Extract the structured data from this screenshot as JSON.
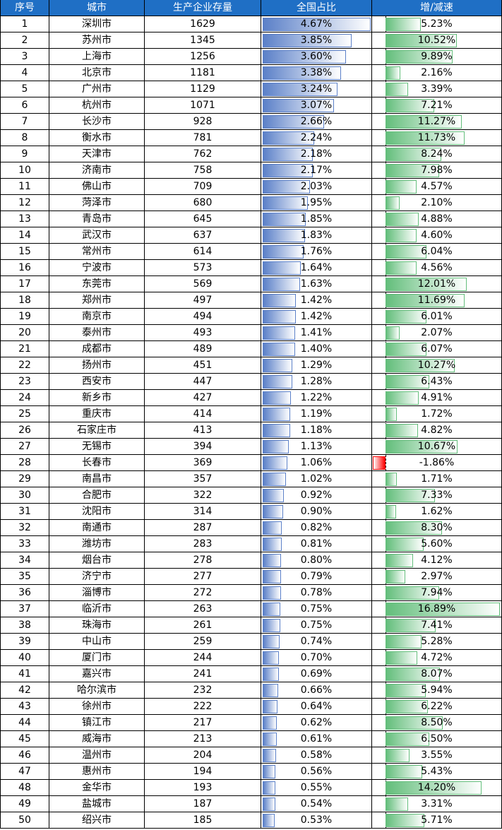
{
  "table": {
    "columns": [
      "序号",
      "城市",
      "生产企业存量",
      "全国占比",
      "增/减速"
    ],
    "rows": [
      [
        1,
        "深圳市",
        1629,
        4.67,
        "4.67%",
        5.23,
        "5.23%"
      ],
      [
        2,
        "苏州市",
        1345,
        3.85,
        "3.85%",
        10.52,
        "10.52%"
      ],
      [
        3,
        "上海市",
        1256,
        3.6,
        "3.60%",
        9.89,
        "9.89%"
      ],
      [
        4,
        "北京市",
        1181,
        3.38,
        "3.38%",
        2.16,
        "2.16%"
      ],
      [
        5,
        "广州市",
        1129,
        3.24,
        "3.24%",
        3.39,
        "3.39%"
      ],
      [
        6,
        "杭州市",
        1071,
        3.07,
        "3.07%",
        7.21,
        "7.21%"
      ],
      [
        7,
        "长沙市",
        928,
        2.66,
        "2.66%",
        11.27,
        "11.27%"
      ],
      [
        8,
        "衡水市",
        781,
        2.24,
        "2.24%",
        11.73,
        "11.73%"
      ],
      [
        9,
        "天津市",
        762,
        2.18,
        "2.18%",
        8.24,
        "8.24%"
      ],
      [
        10,
        "济南市",
        758,
        2.17,
        "2.17%",
        7.98,
        "7.98%"
      ],
      [
        11,
        "佛山市",
        709,
        2.03,
        "2.03%",
        4.57,
        "4.57%"
      ],
      [
        12,
        "菏泽市",
        680,
        1.95,
        "1.95%",
        2.1,
        "2.10%"
      ],
      [
        13,
        "青岛市",
        645,
        1.85,
        "1.85%",
        4.88,
        "4.88%"
      ],
      [
        14,
        "武汉市",
        637,
        1.83,
        "1.83%",
        4.6,
        "4.60%"
      ],
      [
        15,
        "常州市",
        614,
        1.76,
        "1.76%",
        6.04,
        "6.04%"
      ],
      [
        16,
        "宁波市",
        573,
        1.64,
        "1.64%",
        4.56,
        "4.56%"
      ],
      [
        17,
        "东莞市",
        569,
        1.63,
        "1.63%",
        12.01,
        "12.01%"
      ],
      [
        18,
        "郑州市",
        497,
        1.42,
        "1.42%",
        11.69,
        "11.69%"
      ],
      [
        19,
        "南京市",
        494,
        1.42,
        "1.42%",
        6.01,
        "6.01%"
      ],
      [
        20,
        "泰州市",
        493,
        1.41,
        "1.41%",
        2.07,
        "2.07%"
      ],
      [
        21,
        "成都市",
        489,
        1.4,
        "1.40%",
        6.07,
        "6.07%"
      ],
      [
        22,
        "扬州市",
        451,
        1.29,
        "1.29%",
        10.27,
        "10.27%"
      ],
      [
        23,
        "西安市",
        447,
        1.28,
        "1.28%",
        6.43,
        "6.43%"
      ],
      [
        24,
        "新乡市",
        427,
        1.22,
        "1.22%",
        4.91,
        "4.91%"
      ],
      [
        25,
        "重庆市",
        414,
        1.19,
        "1.19%",
        1.72,
        "1.72%"
      ],
      [
        26,
        "石家庄市",
        413,
        1.18,
        "1.18%",
        4.82,
        "4.82%"
      ],
      [
        27,
        "无锡市",
        394,
        1.13,
        "1.13%",
        10.67,
        "10.67%"
      ],
      [
        28,
        "长春市",
        369,
        1.06,
        "1.06%",
        -1.86,
        "-1.86%"
      ],
      [
        29,
        "南昌市",
        357,
        1.02,
        "1.02%",
        1.71,
        "1.71%"
      ],
      [
        30,
        "合肥市",
        322,
        0.92,
        "0.92%",
        7.33,
        "7.33%"
      ],
      [
        31,
        "沈阳市",
        314,
        0.9,
        "0.90%",
        1.62,
        "1.62%"
      ],
      [
        32,
        "南通市",
        287,
        0.82,
        "0.82%",
        8.3,
        "8.30%"
      ],
      [
        33,
        "潍坊市",
        283,
        0.81,
        "0.81%",
        5.6,
        "5.60%"
      ],
      [
        34,
        "烟台市",
        278,
        0.8,
        "0.80%",
        4.12,
        "4.12%"
      ],
      [
        35,
        "济宁市",
        277,
        0.79,
        "0.79%",
        2.97,
        "2.97%"
      ],
      [
        36,
        "淄博市",
        272,
        0.78,
        "0.78%",
        7.94,
        "7.94%"
      ],
      [
        37,
        "临沂市",
        263,
        0.75,
        "0.75%",
        16.89,
        "16.89%"
      ],
      [
        38,
        "珠海市",
        261,
        0.75,
        "0.75%",
        7.41,
        "7.41%"
      ],
      [
        39,
        "中山市",
        259,
        0.74,
        "0.74%",
        5.28,
        "5.28%"
      ],
      [
        40,
        "厦门市",
        244,
        0.7,
        "0.70%",
        4.72,
        "4.72%"
      ],
      [
        41,
        "嘉兴市",
        241,
        0.69,
        "0.69%",
        8.07,
        "8.07%"
      ],
      [
        42,
        "哈尔滨市",
        232,
        0.66,
        "0.66%",
        5.94,
        "5.94%"
      ],
      [
        43,
        "徐州市",
        222,
        0.64,
        "0.64%",
        6.22,
        "6.22%"
      ],
      [
        44,
        "镇江市",
        217,
        0.62,
        "0.62%",
        8.5,
        "8.50%"
      ],
      [
        45,
        "威海市",
        213,
        0.61,
        "0.61%",
        6.5,
        "6.50%"
      ],
      [
        46,
        "温州市",
        204,
        0.58,
        "0.58%",
        3.55,
        "3.55%"
      ],
      [
        47,
        "惠州市",
        194,
        0.56,
        "0.56%",
        5.43,
        "5.43%"
      ],
      [
        48,
        "金华市",
        193,
        0.55,
        "0.55%",
        14.2,
        "14.20%"
      ],
      [
        49,
        "盐城市",
        187,
        0.54,
        "0.54%",
        3.31,
        "3.31%"
      ],
      [
        50,
        "绍兴市",
        185,
        0.53,
        "0.53%",
        5.71,
        "5.71%"
      ]
    ]
  }
}
